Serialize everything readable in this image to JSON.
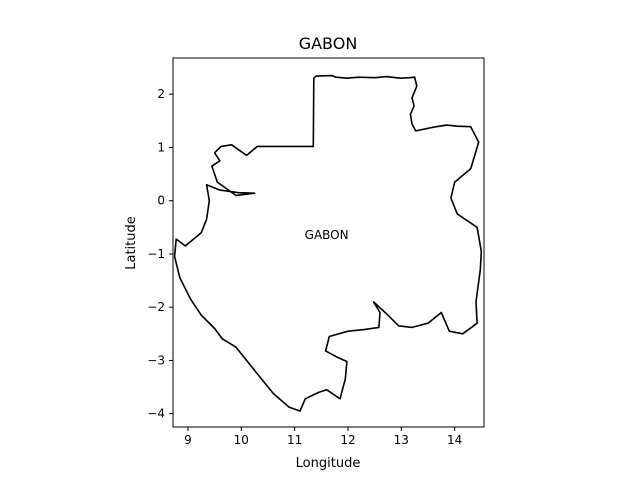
{
  "title": "GABON",
  "xlabel": "Longitude",
  "ylabel": "Latitude",
  "map": {
    "country": "GABON",
    "label": {
      "text": "GABON",
      "lon": 11.6,
      "lat": -0.72
    },
    "xlim": [
      8.72,
      14.55
    ],
    "ylim": [
      -4.25,
      2.68
    ],
    "xticks": [
      9,
      10,
      11,
      12,
      13,
      14
    ],
    "yticks": [
      2,
      1,
      0,
      -1,
      -2,
      -3,
      -4
    ],
    "ytick_labels": [
      "2",
      "1",
      "0",
      "−1",
      "−2",
      "−3",
      "−4"
    ],
    "outline_color": "#000000",
    "outline": [
      [
        11.35,
        1.02
      ],
      [
        11.36,
        2.3
      ],
      [
        11.4,
        2.34
      ],
      [
        11.7,
        2.35
      ],
      [
        11.78,
        2.32
      ],
      [
        11.98,
        2.3
      ],
      [
        12.2,
        2.32
      ],
      [
        12.5,
        2.31
      ],
      [
        12.72,
        2.33
      ],
      [
        12.98,
        2.3
      ],
      [
        13.15,
        2.31
      ],
      [
        13.25,
        2.32
      ],
      [
        13.29,
        2.15
      ],
      [
        13.2,
        1.93
      ],
      [
        13.24,
        1.78
      ],
      [
        13.17,
        1.62
      ],
      [
        13.2,
        1.44
      ],
      [
        13.27,
        1.31
      ],
      [
        13.6,
        1.38
      ],
      [
        13.85,
        1.42
      ],
      [
        14.05,
        1.4
      ],
      [
        14.3,
        1.39
      ],
      [
        14.45,
        1.1
      ],
      [
        14.3,
        0.6
      ],
      [
        14.0,
        0.35
      ],
      [
        13.93,
        0.05
      ],
      [
        14.05,
        -0.25
      ],
      [
        14.42,
        -0.5
      ],
      [
        14.5,
        -0.95
      ],
      [
        14.48,
        -1.3
      ],
      [
        14.4,
        -1.9
      ],
      [
        14.42,
        -2.3
      ],
      [
        14.15,
        -2.5
      ],
      [
        13.9,
        -2.45
      ],
      [
        13.75,
        -2.1
      ],
      [
        13.5,
        -2.3
      ],
      [
        13.2,
        -2.38
      ],
      [
        12.95,
        -2.35
      ],
      [
        12.75,
        -2.15
      ],
      [
        12.48,
        -1.9
      ],
      [
        12.6,
        -2.1
      ],
      [
        12.58,
        -2.38
      ],
      [
        12.3,
        -2.42
      ],
      [
        12.0,
        -2.45
      ],
      [
        11.65,
        -2.55
      ],
      [
        11.58,
        -2.82
      ],
      [
        11.82,
        -2.95
      ],
      [
        11.98,
        -3.02
      ],
      [
        11.95,
        -3.35
      ],
      [
        11.85,
        -3.72
      ],
      [
        11.6,
        -3.55
      ],
      [
        11.45,
        -3.6
      ],
      [
        11.2,
        -3.72
      ],
      [
        11.1,
        -3.95
      ],
      [
        10.9,
        -3.88
      ],
      [
        10.6,
        -3.62
      ],
      [
        10.3,
        -3.25
      ],
      [
        10.1,
        -3.0
      ],
      [
        9.9,
        -2.75
      ],
      [
        9.65,
        -2.6
      ],
      [
        9.5,
        -2.4
      ],
      [
        9.25,
        -2.15
      ],
      [
        9.05,
        -1.85
      ],
      [
        8.85,
        -1.45
      ],
      [
        8.75,
        -1.05
      ],
      [
        8.78,
        -0.72
      ],
      [
        8.95,
        -0.85
      ],
      [
        9.25,
        -0.6
      ],
      [
        9.35,
        -0.35
      ],
      [
        9.4,
        0.0
      ],
      [
        9.35,
        0.3
      ],
      [
        9.6,
        0.2
      ],
      [
        9.95,
        0.15
      ],
      [
        10.25,
        0.14
      ],
      [
        9.9,
        0.1
      ],
      [
        9.55,
        0.35
      ],
      [
        9.45,
        0.65
      ],
      [
        9.6,
        0.75
      ],
      [
        9.5,
        0.9
      ],
      [
        9.62,
        1.02
      ],
      [
        9.82,
        1.05
      ],
      [
        10.0,
        0.92
      ],
      [
        10.1,
        0.85
      ],
      [
        10.3,
        1.02
      ],
      [
        11.35,
        1.02
      ]
    ]
  }
}
